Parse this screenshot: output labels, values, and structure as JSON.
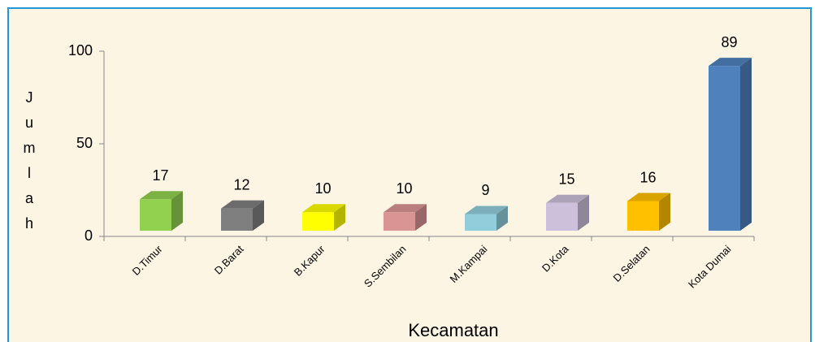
{
  "chart_data": {
    "type": "bar3d",
    "categories": [
      "D.Timur",
      "D.Barat",
      "B.Kapur",
      "S.Sembilan",
      "M.Kampai",
      "D.Kota",
      "D.Selatan",
      "Kota Dumai"
    ],
    "values": [
      17,
      12,
      10,
      10,
      9,
      15,
      16,
      89
    ],
    "colors": [
      "#92d050",
      "#7f7f7f",
      "#ffff00",
      "#d99594",
      "#92cddc",
      "#ccc0da",
      "#ffc000",
      "#4f81bd"
    ],
    "ylim": [
      0,
      100
    ],
    "yticks": [
      0,
      50,
      100
    ],
    "y_label": "Jumlah",
    "x_label": "Kecamatan"
  }
}
